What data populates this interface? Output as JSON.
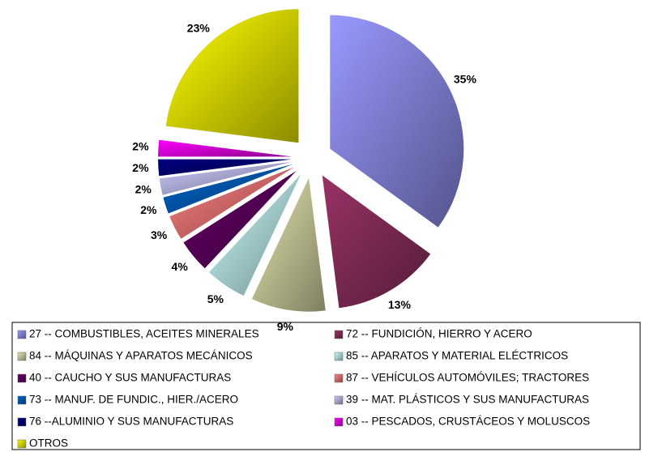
{
  "chart_data": {
    "type": "pie",
    "categories": [
      "27 -- COMBUSTIBLES, ACEITES MINERALES",
      "72 -- FUNDICIÓN, HIERRO Y ACERO",
      "84 -- MÁQUINAS Y APARATOS MECÁNICOS",
      "85 -- APARATOS Y MATERIAL ELÉCTRICOS",
      "40 -- CAUCHO Y SUS MANUFACTURAS",
      "87 -- VEHÍCULOS AUTOMÓVILES; TRACTORES",
      "73 -- MANUF. DE FUNDIC., HIER./ACERO",
      "39 -- MAT. PLÁSTICOS Y SUS MANUFACTURAS",
      "76 --ALUMINIO Y SUS MANUFACTURAS",
      "03 -- PESCADOS, CRUSTÁCEOS Y MOLUSCOS",
      "OTROS"
    ],
    "values": [
      35,
      13,
      9,
      5,
      4,
      3,
      2,
      2,
      2,
      2,
      23
    ],
    "value_labels": [
      "35%",
      "13%",
      "9%",
      "5%",
      "4%",
      "3%",
      "2%",
      "2%",
      "2%",
      "2%",
      "23%"
    ],
    "colors": [
      "#9999ff",
      "#993366",
      "#e6e6b0",
      "#ccffff",
      "#660066",
      "#ff8080",
      "#0066cc",
      "#ccccff",
      "#000080",
      "#ff00ff",
      "#ffff00"
    ],
    "exploded": true,
    "legend": "bottom"
  }
}
